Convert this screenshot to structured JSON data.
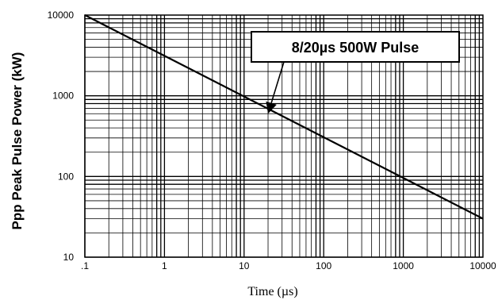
{
  "chart_data": {
    "type": "line",
    "title": "",
    "xlabel": "Time (µs)",
    "ylabel": "Ppp  Peak Pulse Power (kW)",
    "x_scale": "log",
    "y_scale": "log",
    "xlim": [
      0.1,
      10000
    ],
    "ylim": [
      10,
      10000
    ],
    "x_ticks": [
      0.1,
      1,
      10,
      100,
      1000,
      10000
    ],
    "x_tick_labels": [
      ".1",
      "1",
      "10",
      "100",
      "1000",
      "10000"
    ],
    "y_ticks": [
      10,
      100,
      1000,
      10000
    ],
    "y_tick_labels": [
      "10",
      "100",
      "1000",
      "10000"
    ],
    "grid": true,
    "series": [
      {
        "x": [
          0.1,
          10000
        ],
        "y": [
          10000,
          30
        ]
      }
    ],
    "annotations": [
      {
        "text": "8/20µs 500W Pulse",
        "x": 20,
        "y": 600
      }
    ]
  }
}
